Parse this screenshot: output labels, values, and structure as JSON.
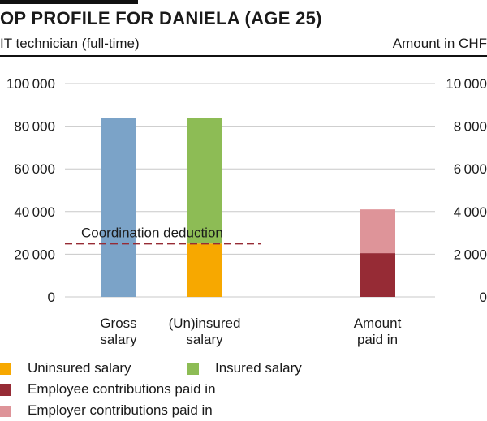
{
  "header": {
    "title": "OP PROFILE FOR DANIELA (AGE 25)",
    "subtitle": "IT technician (full-time)",
    "unit": "Amount in CHF"
  },
  "chart_data": {
    "type": "bar",
    "stacked": true,
    "left_axis": {
      "ylim": [
        0,
        100000
      ],
      "ticks": [
        0,
        20000,
        40000,
        60000,
        80000,
        100000
      ],
      "tick_labels": [
        "0",
        "20 000",
        "40 000",
        "60 000",
        "80 000",
        "100 000"
      ]
    },
    "right_axis": {
      "ylim": [
        0,
        10000
      ],
      "ticks": [
        0,
        2000,
        4000,
        6000,
        8000,
        10000
      ],
      "tick_labels": [
        "0",
        "2 000",
        "4 000",
        "6 000",
        "8 000",
        "10 000"
      ]
    },
    "grid": true,
    "categories": [
      {
        "label_lines": [
          "Gross",
          "salary"
        ],
        "axis": "left",
        "segments": [
          {
            "series": "Gross salary",
            "value": 84000,
            "color": "#7ba3c8"
          }
        ]
      },
      {
        "label_lines": [
          "(Un)insured",
          "salary"
        ],
        "axis": "left",
        "segments": [
          {
            "series": "Uninsured salary",
            "value": 25000,
            "color": "#f7a800"
          },
          {
            "series": "Insured salary",
            "value": 59000,
            "color": "#8dbc55"
          }
        ]
      },
      {
        "label_lines": [
          "Amount",
          "paid in"
        ],
        "axis": "right",
        "segments": [
          {
            "series": "Employee contributions paid in",
            "value": 2050,
            "color": "#962b35"
          },
          {
            "series": "Employer contributions paid in",
            "value": 2050,
            "color": "#de9499"
          }
        ]
      }
    ],
    "reference_line": {
      "label": "Coordination deduction",
      "value": 25000,
      "axis": "left",
      "style": "dashed",
      "color": "#962b35"
    },
    "legend": {
      "placement": "bottom",
      "items": [
        {
          "label": "Uninsured salary",
          "color": "#f7a800"
        },
        {
          "label": "Insured salary",
          "color": "#8dbc55"
        },
        {
          "label": "Employee contributions paid in",
          "color": "#962b35"
        },
        {
          "label": "Employer contributions paid in",
          "color": "#de9499"
        }
      ]
    }
  }
}
